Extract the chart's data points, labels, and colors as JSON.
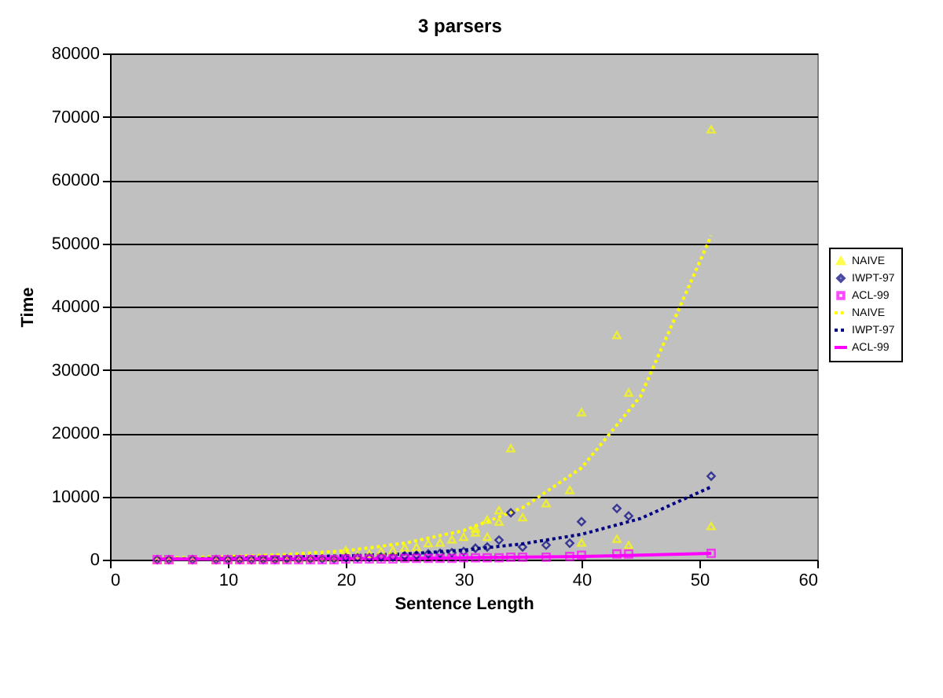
{
  "chart_data": {
    "type": "scatter",
    "title": "3 parsers",
    "xlabel": "Sentence Length",
    "ylabel": "Time",
    "xlim": [
      0,
      60
    ],
    "xticks": [
      0,
      10,
      20,
      30,
      40,
      50,
      60
    ],
    "ylim": [
      0,
      80000
    ],
    "yticks": [
      0,
      10000,
      20000,
      30000,
      40000,
      50000,
      60000,
      70000,
      80000
    ],
    "grid": "y",
    "legend": "right",
    "series": [
      {
        "name": "NAIVE",
        "color": "#ffff00",
        "marker": "triangle",
        "x": [
          4,
          5,
          7,
          9,
          10,
          11,
          12,
          13,
          14,
          15,
          16,
          17,
          18,
          19,
          20,
          21,
          22,
          23,
          24,
          25,
          26,
          27,
          28,
          29,
          30,
          31,
          31,
          32,
          32,
          33,
          33,
          34,
          35,
          37,
          39,
          40,
          40,
          43,
          43,
          44,
          44,
          51,
          51
        ],
        "values": [
          0,
          0,
          0,
          0,
          0,
          0,
          0,
          100,
          100,
          100,
          200,
          200,
          300,
          300,
          1500,
          700,
          900,
          1300,
          1500,
          1900,
          2000,
          2600,
          2700,
          3200,
          3600,
          4900,
          4300,
          6300,
          3600,
          7800,
          6000,
          17600,
          6700,
          8900,
          11000,
          23300,
          2700,
          35500,
          3300,
          26400,
          2300,
          68000,
          5300
        ]
      },
      {
        "name": "IWPT-97",
        "color": "#000080",
        "marker": "diamond",
        "x": [
          4,
          5,
          7,
          9,
          10,
          11,
          12,
          13,
          14,
          15,
          16,
          17,
          18,
          19,
          20,
          21,
          22,
          23,
          24,
          25,
          26,
          27,
          28,
          29,
          30,
          31,
          32,
          33,
          34,
          35,
          37,
          39,
          40,
          43,
          44,
          51
        ],
        "values": [
          0,
          0,
          0,
          0,
          0,
          0,
          0,
          0,
          0,
          100,
          100,
          100,
          100,
          100,
          300,
          300,
          300,
          400,
          400,
          600,
          700,
          900,
          1000,
          1100,
          1300,
          1800,
          2000,
          3100,
          7400,
          2000,
          2300,
          2600,
          6000,
          8100,
          6900,
          13200
        ]
      },
      {
        "name": "ACL-99",
        "color": "#ff00ff",
        "marker": "square",
        "x": [
          4,
          5,
          7,
          9,
          10,
          11,
          12,
          13,
          14,
          15,
          16,
          17,
          18,
          19,
          20,
          21,
          22,
          23,
          24,
          25,
          26,
          27,
          28,
          29,
          30,
          31,
          32,
          33,
          34,
          35,
          37,
          39,
          40,
          43,
          44,
          51
        ],
        "values": [
          0,
          0,
          0,
          0,
          0,
          0,
          0,
          0,
          0,
          0,
          0,
          0,
          0,
          0,
          100,
          100,
          100,
          100,
          100,
          200,
          200,
          200,
          200,
          200,
          300,
          300,
          300,
          300,
          400,
          400,
          400,
          500,
          700,
          900,
          900,
          1000
        ]
      },
      {
        "name": "NAIVE",
        "color": "#ffff00",
        "type": "line",
        "line_style": "dotted",
        "marker": "none",
        "x": [
          4,
          10,
          15,
          20,
          25,
          30,
          35,
          40,
          45,
          51
        ],
        "values": [
          200,
          500,
          800,
          1400,
          2600,
          4600,
          8200,
          14500,
          25800,
          51200
        ]
      },
      {
        "name": "IWPT-97",
        "color": "#000080",
        "type": "line",
        "line_style": "dotted",
        "marker": "none",
        "x": [
          4,
          10,
          15,
          20,
          25,
          30,
          35,
          40,
          45,
          51
        ],
        "values": [
          100,
          200,
          400,
          600,
          900,
          1500,
          2500,
          4000,
          6500,
          11500
        ]
      },
      {
        "name": "ACL-99",
        "color": "#ff00ff",
        "type": "line",
        "marker": "none",
        "x": [
          4,
          10,
          15,
          20,
          25,
          30,
          35,
          40,
          45,
          51
        ],
        "values": [
          100,
          100,
          100,
          200,
          200,
          300,
          400,
          500,
          700,
          1000
        ]
      }
    ]
  }
}
